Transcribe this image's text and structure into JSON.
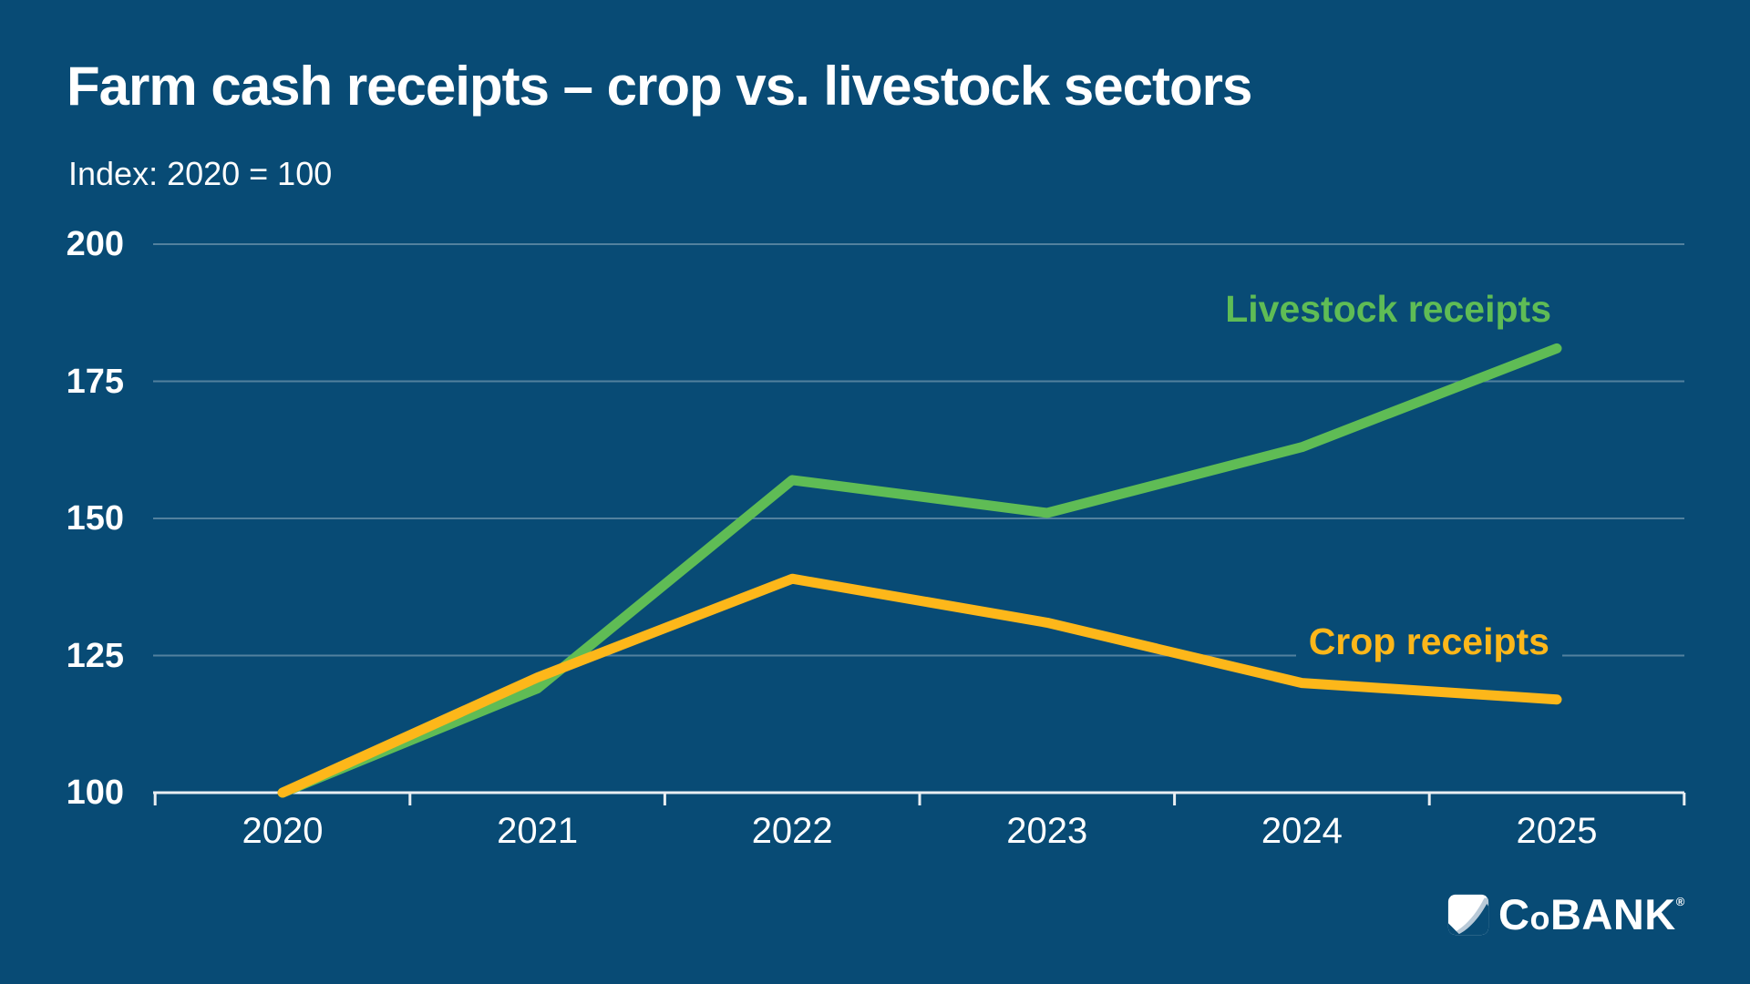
{
  "header": {
    "title": "Farm cash receipts – crop vs. livestock sectors",
    "subtitle": "Index: 2020 = 100"
  },
  "chart_data": {
    "type": "line",
    "title": "Farm cash receipts – crop vs. livestock sectors",
    "subtitle_note": "Index: 2020 = 100",
    "categories": [
      "2020",
      "2021",
      "2022",
      "2023",
      "2024",
      "2025"
    ],
    "x": [
      2020,
      2021,
      2022,
      2023,
      2024,
      2025
    ],
    "series": [
      {
        "name": "Livestock receipts",
        "color": "#5FBC55",
        "values": [
          100,
          119,
          157,
          151,
          163,
          181
        ]
      },
      {
        "name": "Crop receipts",
        "color": "#FDB71A",
        "values": [
          100,
          121,
          139,
          131,
          120,
          117
        ]
      }
    ],
    "xlabel": "",
    "ylabel": "",
    "ylim": [
      100,
      200
    ],
    "yticks": [
      100,
      125,
      150,
      175,
      200
    ],
    "grid": "horizontal gridlines only",
    "legend_position": "inline labels at right of lines",
    "x_axis": "white baseline with downward tick marks at category boundaries"
  },
  "annotations": {
    "livestock_label": "Livestock receipts",
    "crop_label": "Crop receipts"
  },
  "colors": {
    "background": "#084B75",
    "gridline": "rgba(255,255,255,0.30)",
    "axis": "#E9EEF2",
    "text": "#FFFFFF",
    "livestock_line": "#5FBC55",
    "crop_line": "#FDB71A",
    "logo_swoosh": "#B9CAD8"
  },
  "footer": {
    "logo_text_c": "C",
    "logo_text_o": "o",
    "logo_text_bank": "BANK",
    "logo_reg": "®"
  }
}
